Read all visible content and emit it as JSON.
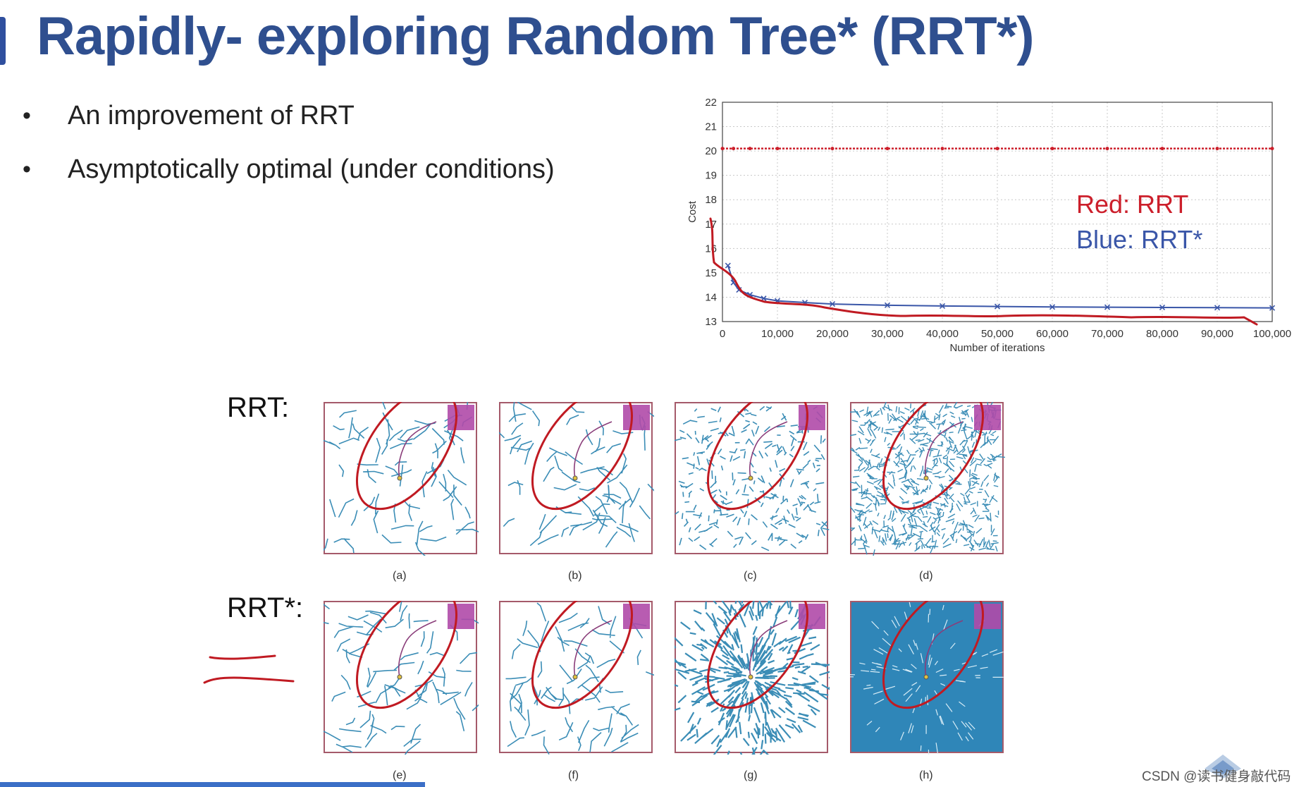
{
  "slide": {
    "title": "Rapidly- exploring Random Tree* (RRT*)",
    "bullets": [
      {
        "marker": "•",
        "text": "An improvement of RRT"
      },
      {
        "marker": "•",
        "text": "Asymptotically optimal (under conditions)"
      }
    ],
    "watermark": "CSDN @读书健身敲代码"
  },
  "chart_data": {
    "type": "line",
    "title": "",
    "xlabel": "Number of iterations",
    "ylabel": "Cost",
    "xlim": [
      0,
      100000
    ],
    "ylim": [
      13,
      22
    ],
    "x_ticks": [
      "0",
      "10,000",
      "20,000",
      "30,000",
      "40,000",
      "50,000",
      "60,000",
      "70,000",
      "80,000",
      "90,000",
      "100,000"
    ],
    "y_ticks": [
      "13",
      "14",
      "15",
      "16",
      "17",
      "18",
      "19",
      "20",
      "21",
      "22"
    ],
    "grid": true,
    "annotations": [
      "Red: RRT",
      "Blue: RRT*"
    ],
    "series": [
      {
        "color": "#cc1f2b",
        "x": [
          0,
          2000,
          5000,
          10000,
          20000,
          30000,
          40000,
          50000,
          60000,
          70000,
          80000,
          90000,
          100000
        ],
        "y": [
          20.1,
          20.1,
          20.1,
          20.1,
          20.1,
          20.1,
          20.1,
          20.1,
          20.1,
          20.1,
          20.1,
          20.1,
          20.1
        ]
      },
      {
        "color": "#3a56a8",
        "x": [
          1000,
          2000,
          3000,
          5000,
          7500,
          10000,
          15000,
          20000,
          30000,
          40000,
          50000,
          60000,
          70000,
          80000,
          90000,
          100000
        ],
        "y": [
          15.3,
          14.6,
          14.3,
          14.1,
          13.95,
          13.85,
          13.78,
          13.72,
          13.67,
          13.64,
          13.62,
          13.6,
          13.59,
          13.58,
          13.57,
          13.56
        ]
      }
    ]
  },
  "figure": {
    "rows": [
      {
        "label": "RRT:",
        "panels": [
          {
            "caption": "(a)",
            "density": "low"
          },
          {
            "caption": "(b)",
            "density": "low"
          },
          {
            "caption": "(c)",
            "density": "medium"
          },
          {
            "caption": "(d)",
            "density": "high"
          }
        ]
      },
      {
        "label": "RRT*:",
        "panels": [
          {
            "caption": "(e)",
            "density": "low"
          },
          {
            "caption": "(f)",
            "density": "low"
          },
          {
            "caption": "(g)",
            "density": "radial"
          },
          {
            "caption": "(h)",
            "density": "radial-dense"
          }
        ]
      }
    ],
    "colors": {
      "tree": "#3b8db6",
      "goal_region": "#b04aa8",
      "frame": "#a55a6a",
      "annotation_ink": "#c01a22"
    }
  }
}
